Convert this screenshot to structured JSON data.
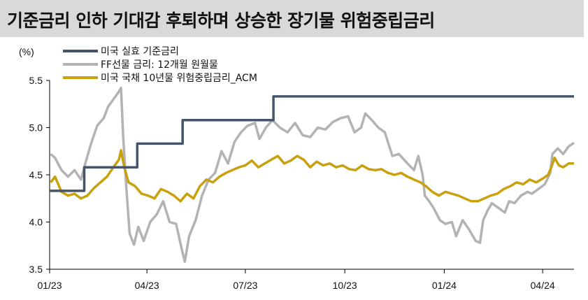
{
  "title": "기준금리 인하 기대감 후퇴하며 상승한 장기물 위험중립금리",
  "chart_data": {
    "type": "line",
    "ylabel": "(%)",
    "ylim": [
      3.5,
      5.5
    ],
    "yticks": [
      "3.5",
      "4.0",
      "4.5",
      "5.0",
      "5.5"
    ],
    "xlim": [
      "2023-01-01",
      "2024-04-30"
    ],
    "xticks": [
      {
        "label": "01/23",
        "date": "2023-01-01"
      },
      {
        "label": "04/23",
        "date": "2023-04-01"
      },
      {
        "label": "07/23",
        "date": "2023-07-01"
      },
      {
        "label": "10/23",
        "date": "2023-10-01"
      },
      {
        "label": "01/24",
        "date": "2024-01-01"
      },
      {
        "label": "04/24",
        "date": "2024-04-01"
      }
    ],
    "grid": false,
    "legend": "top-left",
    "series": [
      {
        "name": "미국 실효 기준금리",
        "color": "#44546a",
        "step": true,
        "points": [
          [
            "2023-01-01",
            4.33
          ],
          [
            "2023-02-02",
            4.33
          ],
          [
            "2023-02-02",
            4.58
          ],
          [
            "2023-03-23",
            4.58
          ],
          [
            "2023-03-23",
            4.83
          ],
          [
            "2023-05-04",
            4.83
          ],
          [
            "2023-05-04",
            5.08
          ],
          [
            "2023-07-27",
            5.08
          ],
          [
            "2023-07-27",
            5.33
          ],
          [
            "2024-04-30",
            5.33
          ]
        ]
      },
      {
        "name": "FF선물 금리: 12개월 원월물",
        "color": "#b3b3b3",
        "points": [
          [
            "2023-01-02",
            4.72
          ],
          [
            "2023-01-06",
            4.68
          ],
          [
            "2023-01-12",
            4.55
          ],
          [
            "2023-01-18",
            4.48
          ],
          [
            "2023-01-24",
            4.55
          ],
          [
            "2023-01-30",
            4.45
          ],
          [
            "2023-02-03",
            4.62
          ],
          [
            "2023-02-08",
            4.82
          ],
          [
            "2023-02-14",
            5.02
          ],
          [
            "2023-02-20",
            5.1
          ],
          [
            "2023-02-24",
            5.22
          ],
          [
            "2023-03-01",
            5.3
          ],
          [
            "2023-03-06",
            5.38
          ],
          [
            "2023-03-08",
            5.42
          ],
          [
            "2023-03-10",
            4.9
          ],
          [
            "2023-03-13",
            4.35
          ],
          [
            "2023-03-16",
            3.88
          ],
          [
            "2023-03-20",
            3.76
          ],
          [
            "2023-03-24",
            3.95
          ],
          [
            "2023-03-29",
            3.8
          ],
          [
            "2023-04-04",
            4.0
          ],
          [
            "2023-04-10",
            4.08
          ],
          [
            "2023-04-16",
            4.22
          ],
          [
            "2023-04-22",
            4.0
          ],
          [
            "2023-04-28",
            3.98
          ],
          [
            "2023-05-03",
            3.72
          ],
          [
            "2023-05-06",
            3.58
          ],
          [
            "2023-05-10",
            3.85
          ],
          [
            "2023-05-16",
            4.02
          ],
          [
            "2023-05-22",
            4.28
          ],
          [
            "2023-05-28",
            4.45
          ],
          [
            "2023-06-03",
            4.52
          ],
          [
            "2023-06-09",
            4.75
          ],
          [
            "2023-06-15",
            4.62
          ],
          [
            "2023-06-21",
            4.85
          ],
          [
            "2023-06-27",
            4.95
          ],
          [
            "2023-07-03",
            5.02
          ],
          [
            "2023-07-10",
            5.05
          ],
          [
            "2023-07-14",
            4.88
          ],
          [
            "2023-07-20",
            5.0
          ],
          [
            "2023-07-26",
            5.08
          ],
          [
            "2023-08-02",
            5.0
          ],
          [
            "2023-08-09",
            4.95
          ],
          [
            "2023-08-16",
            5.05
          ],
          [
            "2023-08-23",
            4.92
          ],
          [
            "2023-08-30",
            4.9
          ],
          [
            "2023-09-06",
            5.0
          ],
          [
            "2023-09-13",
            4.98
          ],
          [
            "2023-09-20",
            5.06
          ],
          [
            "2023-09-27",
            5.1
          ],
          [
            "2023-10-04",
            5.12
          ],
          [
            "2023-10-10",
            4.95
          ],
          [
            "2023-10-16",
            5.0
          ],
          [
            "2023-10-20",
            5.15
          ],
          [
            "2023-10-26",
            5.08
          ],
          [
            "2023-11-01",
            5.0
          ],
          [
            "2023-11-07",
            4.95
          ],
          [
            "2023-11-14",
            4.7
          ],
          [
            "2023-11-20",
            4.72
          ],
          [
            "2023-11-28",
            4.62
          ],
          [
            "2023-12-04",
            4.55
          ],
          [
            "2023-12-08",
            4.7
          ],
          [
            "2023-12-12",
            4.5
          ],
          [
            "2023-12-14",
            4.28
          ],
          [
            "2023-12-18",
            4.22
          ],
          [
            "2023-12-22",
            4.15
          ],
          [
            "2023-12-28",
            4.02
          ],
          [
            "2024-01-02",
            3.98
          ],
          [
            "2024-01-08",
            4.0
          ],
          [
            "2024-01-12",
            3.85
          ],
          [
            "2024-01-18",
            4.02
          ],
          [
            "2024-01-24",
            3.92
          ],
          [
            "2024-01-30",
            3.8
          ],
          [
            "2024-02-03",
            3.78
          ],
          [
            "2024-02-06",
            4.02
          ],
          [
            "2024-02-10",
            4.12
          ],
          [
            "2024-02-14",
            4.2
          ],
          [
            "2024-02-20",
            4.15
          ],
          [
            "2024-02-26",
            4.1
          ],
          [
            "2024-03-01",
            4.22
          ],
          [
            "2024-03-06",
            4.2
          ],
          [
            "2024-03-12",
            4.28
          ],
          [
            "2024-03-18",
            4.32
          ],
          [
            "2024-03-22",
            4.3
          ],
          [
            "2024-03-28",
            4.35
          ],
          [
            "2024-04-03",
            4.4
          ],
          [
            "2024-04-08",
            4.52
          ],
          [
            "2024-04-10",
            4.72
          ],
          [
            "2024-04-15",
            4.78
          ],
          [
            "2024-04-20",
            4.72
          ],
          [
            "2024-04-25",
            4.8
          ],
          [
            "2024-04-30",
            4.84
          ]
        ]
      },
      {
        "name": "미국 국채 10년물 위험중립금리_ACM",
        "color": "#c9a00e",
        "points": [
          [
            "2023-01-02",
            4.42
          ],
          [
            "2023-01-06",
            4.48
          ],
          [
            "2023-01-12",
            4.32
          ],
          [
            "2023-01-18",
            4.28
          ],
          [
            "2023-01-24",
            4.3
          ],
          [
            "2023-01-30",
            4.25
          ],
          [
            "2023-02-05",
            4.28
          ],
          [
            "2023-02-11",
            4.36
          ],
          [
            "2023-02-17",
            4.42
          ],
          [
            "2023-02-23",
            4.48
          ],
          [
            "2023-03-01",
            4.58
          ],
          [
            "2023-03-06",
            4.66
          ],
          [
            "2023-03-08",
            4.76
          ],
          [
            "2023-03-11",
            4.58
          ],
          [
            "2023-03-15",
            4.42
          ],
          [
            "2023-03-21",
            4.38
          ],
          [
            "2023-03-27",
            4.3
          ],
          [
            "2023-04-02",
            4.28
          ],
          [
            "2023-04-08",
            4.25
          ],
          [
            "2023-04-14",
            4.35
          ],
          [
            "2023-04-20",
            4.32
          ],
          [
            "2023-04-26",
            4.28
          ],
          [
            "2023-05-02",
            4.22
          ],
          [
            "2023-05-08",
            4.3
          ],
          [
            "2023-05-14",
            4.25
          ],
          [
            "2023-05-20",
            4.38
          ],
          [
            "2023-05-26",
            4.45
          ],
          [
            "2023-06-01",
            4.42
          ],
          [
            "2023-06-07",
            4.48
          ],
          [
            "2023-06-13",
            4.52
          ],
          [
            "2023-06-19",
            4.55
          ],
          [
            "2023-06-25",
            4.58
          ],
          [
            "2023-07-01",
            4.6
          ],
          [
            "2023-07-07",
            4.65
          ],
          [
            "2023-07-13",
            4.58
          ],
          [
            "2023-07-19",
            4.62
          ],
          [
            "2023-07-25",
            4.66
          ],
          [
            "2023-07-31",
            4.7
          ],
          [
            "2023-08-06",
            4.62
          ],
          [
            "2023-08-12",
            4.65
          ],
          [
            "2023-08-18",
            4.7
          ],
          [
            "2023-08-24",
            4.66
          ],
          [
            "2023-08-30",
            4.58
          ],
          [
            "2023-09-05",
            4.64
          ],
          [
            "2023-09-11",
            4.6
          ],
          [
            "2023-09-17",
            4.62
          ],
          [
            "2023-09-23",
            4.58
          ],
          [
            "2023-09-29",
            4.6
          ],
          [
            "2023-10-05",
            4.56
          ],
          [
            "2023-10-11",
            4.55
          ],
          [
            "2023-10-17",
            4.6
          ],
          [
            "2023-10-23",
            4.56
          ],
          [
            "2023-10-29",
            4.55
          ],
          [
            "2023-11-04",
            4.56
          ],
          [
            "2023-11-10",
            4.52
          ],
          [
            "2023-11-16",
            4.5
          ],
          [
            "2023-11-22",
            4.52
          ],
          [
            "2023-11-28",
            4.48
          ],
          [
            "2023-12-04",
            4.45
          ],
          [
            "2023-12-10",
            4.42
          ],
          [
            "2023-12-15",
            4.38
          ],
          [
            "2023-12-21",
            4.32
          ],
          [
            "2023-12-27",
            4.28
          ],
          [
            "2024-01-02",
            4.32
          ],
          [
            "2024-01-08",
            4.3
          ],
          [
            "2024-01-14",
            4.28
          ],
          [
            "2024-01-20",
            4.25
          ],
          [
            "2024-01-26",
            4.22
          ],
          [
            "2024-02-01",
            4.22
          ],
          [
            "2024-02-07",
            4.25
          ],
          [
            "2024-02-13",
            4.28
          ],
          [
            "2024-02-19",
            4.3
          ],
          [
            "2024-02-25",
            4.35
          ],
          [
            "2024-03-02",
            4.38
          ],
          [
            "2024-03-08",
            4.42
          ],
          [
            "2024-03-14",
            4.4
          ],
          [
            "2024-03-20",
            4.45
          ],
          [
            "2024-03-26",
            4.42
          ],
          [
            "2024-04-01",
            4.46
          ],
          [
            "2024-04-06",
            4.5
          ],
          [
            "2024-04-09",
            4.58
          ],
          [
            "2024-04-12",
            4.68
          ],
          [
            "2024-04-16",
            4.6
          ],
          [
            "2024-04-20",
            4.58
          ],
          [
            "2024-04-25",
            4.62
          ],
          [
            "2024-04-30",
            4.62
          ]
        ]
      }
    ]
  }
}
